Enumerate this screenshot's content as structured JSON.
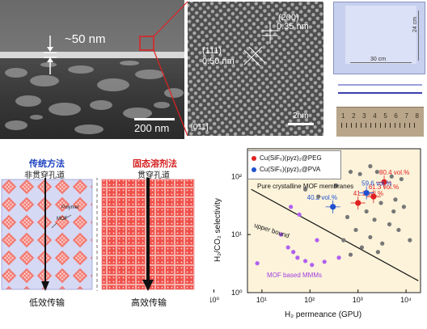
{
  "panel_sem": {
    "thickness_label": "~50 nm",
    "scalebar": "200 nm"
  },
  "panel_tem": {
    "plane_200": "(200)",
    "d_200": "0.35 nm",
    "plane_111": "(111)",
    "d_111": "0.50 nm",
    "zone_axis": "[011]",
    "scalebar": "2nm"
  },
  "panel_photo": {
    "height_label": "24 cm",
    "width_label": "30 cm",
    "ruler_ticks": [
      "1",
      "2",
      "3",
      "4",
      "5",
      "6",
      "7",
      "8"
    ]
  },
  "panel_schematic": {
    "left_title": "传统方法",
    "left_subtitle": "非贯穿孔道",
    "right_title": "固态溶剂法",
    "right_subtitle": "贯穿孔道",
    "label_polymer": "Polymer",
    "label_mof": "MOF",
    "left_caption": "低效传输",
    "right_caption": "高效传输",
    "colors": {
      "left_title": "#1a3fbf",
      "right_title": "#d42020",
      "mof": "#f0504a",
      "matrix_left": "#d6d9f4"
    }
  },
  "chart_data": {
    "type": "scatter",
    "xlabel": "H₂ permeance (GPU)",
    "ylabel": "H₂/CO₂ selectivity",
    "x_scale": "log",
    "y_scale": "log",
    "xlim": [
      5,
      20000
    ],
    "ylim": [
      1,
      300
    ],
    "x_ticks": [
      "10⁰",
      "10¹",
      "10²",
      "10³",
      "10⁴"
    ],
    "y_ticks": [
      "10⁰",
      "10¹",
      "10²"
    ],
    "legend": [
      {
        "name": "Cu(SiF₆)(pyz)₂@PEG",
        "color": "#e02020"
      },
      {
        "name": "Cu(SiF₆)(pyz)₂@PVA",
        "color": "#2050d0"
      }
    ],
    "annotations": {
      "pure": "Pure crystalline MOF membranes",
      "upper_bound": "upper bound",
      "mmm": "MOF based MMMs"
    },
    "series": [
      {
        "name": "Cu(SiF₆)(pyz)₂@PEG",
        "points": [
          {
            "x": 3500,
            "y": 80,
            "label": "80.4 vol.%"
          },
          {
            "x": 2100,
            "y": 45,
            "label": "61.3 vol.%"
          },
          {
            "x": 1000,
            "y": 35,
            "label": "41.2 vol.%"
          }
        ]
      },
      {
        "name": "Cu(SiF₆)(pyz)₂@PVA",
        "points": [
          {
            "x": 1500,
            "y": 52,
            "label": "59.6 vol.%"
          },
          {
            "x": 300,
            "y": 30,
            "label": "40.2 vol.%"
          }
        ]
      },
      {
        "name": "Pure crystalline MOF membranes",
        "points": [
          {
            "x": 250,
            "y": 200
          },
          {
            "x": 400,
            "y": 150
          },
          {
            "x": 700,
            "y": 120
          },
          {
            "x": 1100,
            "y": 110
          },
          {
            "x": 1800,
            "y": 150
          },
          {
            "x": 2500,
            "y": 120
          },
          {
            "x": 5000,
            "y": 100
          },
          {
            "x": 8000,
            "y": 90
          },
          {
            "x": 3000,
            "y": 35
          },
          {
            "x": 6000,
            "y": 40
          },
          {
            "x": 9000,
            "y": 30
          },
          {
            "x": 1500,
            "y": 25
          },
          {
            "x": 600,
            "y": 20
          },
          {
            "x": 2200,
            "y": 18
          },
          {
            "x": 4500,
            "y": 15
          },
          {
            "x": 7000,
            "y": 12
          },
          {
            "x": 900,
            "y": 12
          },
          {
            "x": 1800,
            "y": 9
          },
          {
            "x": 3200,
            "y": 7
          },
          {
            "x": 500,
            "y": 8
          },
          {
            "x": 1200,
            "y": 6
          },
          {
            "x": 2600,
            "y": 5
          },
          {
            "x": 700,
            "y": 4.5
          },
          {
            "x": 12000,
            "y": 8
          },
          {
            "x": 150,
            "y": 45
          },
          {
            "x": 80,
            "y": 60
          },
          {
            "x": 350,
            "y": 70
          },
          {
            "x": 5500,
            "y": 25
          }
        ]
      },
      {
        "name": "MOF based MMMs",
        "points": [
          {
            "x": 40,
            "y": 30
          },
          {
            "x": 60,
            "y": 22
          },
          {
            "x": 25,
            "y": 10
          },
          {
            "x": 35,
            "y": 6
          },
          {
            "x": 45,
            "y": 5
          },
          {
            "x": 55,
            "y": 4
          },
          {
            "x": 80,
            "y": 3.5
          },
          {
            "x": 110,
            "y": 3
          },
          {
            "x": 140,
            "y": 8
          },
          {
            "x": 200,
            "y": 3.4
          },
          {
            "x": 400,
            "y": 4
          },
          {
            "x": 8,
            "y": 3.2
          }
        ]
      }
    ]
  }
}
